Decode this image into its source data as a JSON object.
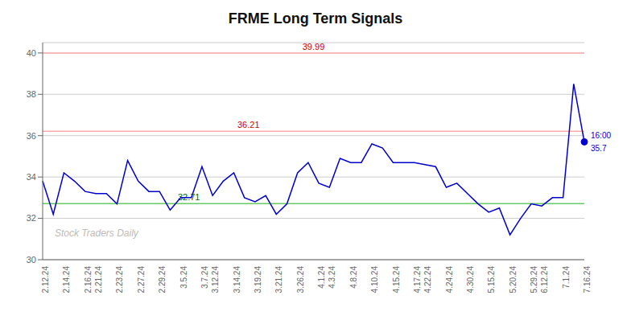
{
  "chart_data": {
    "type": "line",
    "title": "FRME Long Term Signals",
    "categories": [
      "2.12.24",
      null,
      "2.14.24",
      null,
      "2.16.24",
      "2.21.24",
      null,
      "2.23.24",
      null,
      "2.27.24",
      null,
      "2.29.24",
      null,
      "3.5.24",
      null,
      "3.7.24",
      "3.12.24",
      null,
      "3.14.24",
      null,
      "3.19.24",
      null,
      "3.21.24",
      null,
      "3.26.24",
      null,
      "4.1.24",
      "4.3.24",
      null,
      "4.8.24",
      null,
      "4.10.24",
      null,
      "4.15.24",
      null,
      "4.17.24",
      "4.22.24",
      null,
      "4.24.24",
      null,
      "4.30.24",
      null,
      "5.15.24",
      null,
      "5.20.24",
      null,
      "5.29.24",
      "6.12.24",
      null,
      "7.1.24",
      null,
      "7.16.24"
    ],
    "values": [
      33.8,
      32.2,
      34.2,
      33.8,
      33.3,
      33.2,
      33.2,
      32.7,
      34.8,
      33.8,
      33.3,
      33.3,
      32.4,
      33.0,
      33.0,
      34.5,
      33.1,
      33.8,
      34.2,
      33.0,
      32.8,
      33.1,
      32.2,
      32.7,
      34.2,
      34.7,
      33.7,
      33.5,
      34.9,
      34.7,
      34.7,
      35.6,
      35.4,
      34.7,
      34.7,
      34.7,
      34.6,
      34.5,
      33.5,
      33.7,
      33.2,
      32.7,
      32.3,
      32.5,
      31.2,
      32.0,
      32.7,
      32.6,
      33.0,
      33.0,
      38.5,
      35.7
    ],
    "color": "#0000cc",
    "ylim": [
      30,
      40.5
    ],
    "yticks": [
      30,
      32,
      34,
      36,
      38,
      40
    ],
    "grid": true,
    "hlines": [
      {
        "value": 39.99,
        "label": "39.99",
        "color": "#ffaaaa",
        "label_color": "#cc0000"
      },
      {
        "value": 36.21,
        "label": "36.21",
        "color": "#ffaaaa",
        "label_color": "#cc0000"
      },
      {
        "value": 32.71,
        "label": "32.71",
        "color": "#66cc66",
        "label_color": "#006600"
      }
    ],
    "end_labels": [
      "16:00",
      "35.7"
    ],
    "watermark": "Stock Traders Daily"
  }
}
